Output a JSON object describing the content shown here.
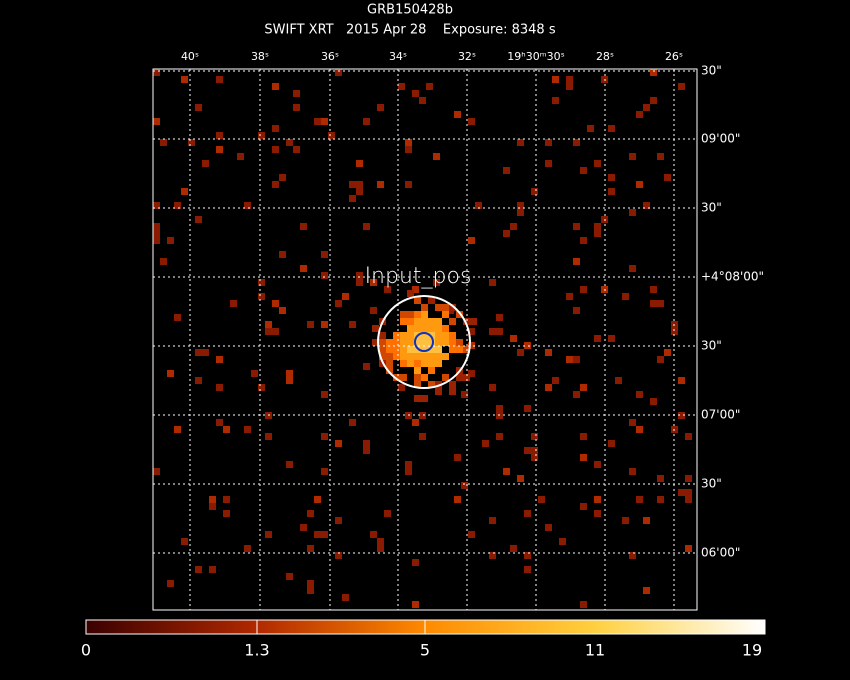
{
  "header": {
    "title": "GRB150428b",
    "subtitle": "SWIFT XRT   2015 Apr 28    Exposure: 8348 s"
  },
  "x_axis_labels": [
    "40ˢ",
    "38ˢ",
    "36ˢ",
    "34ˢ",
    "32ˢ",
    "19ʰ30ᵐ30ˢ",
    "28ˢ",
    "26ˢ"
  ],
  "y_axis_labels": [
    "30\"",
    "09'00\"",
    "30\"",
    "+4°08'00\"",
    "30\"",
    "07'00\"",
    "30\"",
    "06'00\""
  ],
  "annotation": "Input_pos",
  "colorbar_labels": [
    "0",
    "1.3",
    "5",
    "11",
    "19"
  ]
}
